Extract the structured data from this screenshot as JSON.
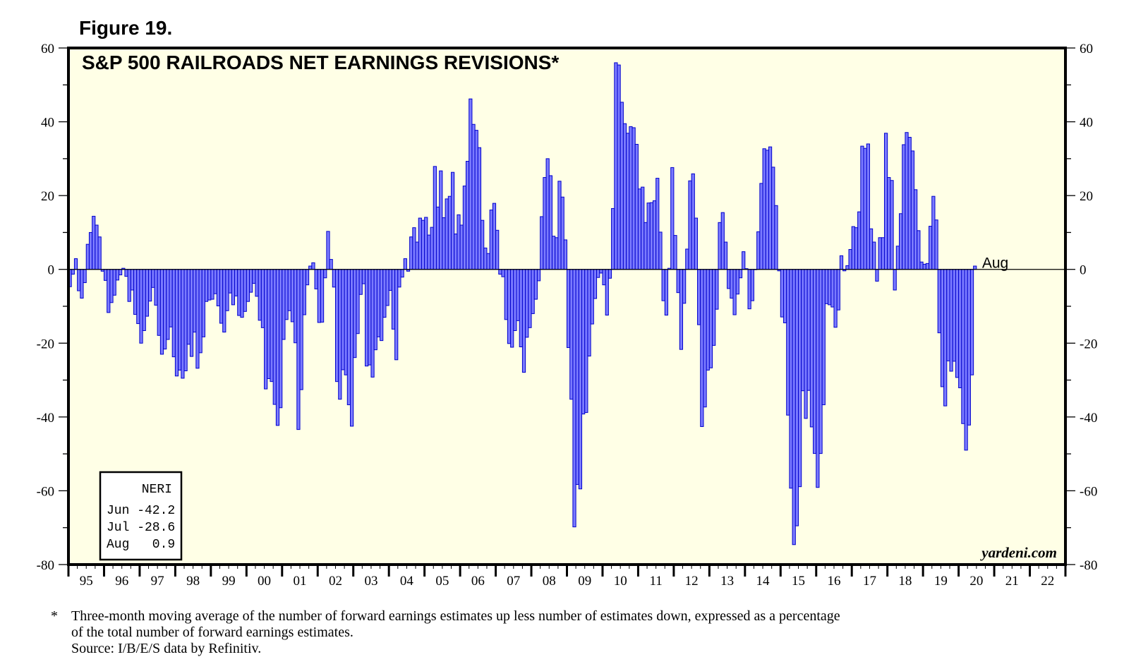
{
  "figure_label": "Figure 19.",
  "watermark": "yardeni.com",
  "latest_label": "Aug",
  "colors": {
    "plot_bg": "#ffffe6",
    "bar_fill": "#7b7bff",
    "bar_stroke": "#0000cc",
    "frame": "#000000"
  },
  "inset": {
    "header": "NERI",
    "rows": [
      "Jun -42.2",
      "Jul -28.6",
      "Aug   0.9"
    ]
  },
  "footnote": {
    "star": "*",
    "line1": "Three-month moving average of the number of forward earnings estimates up less number of estimates down, expressed as a percentage",
    "line2": "of the total number of forward earnings estimates.",
    "line3": "Source: I/B/E/S data by Refinitiv."
  },
  "chart_data": {
    "type": "bar",
    "title": "S&P 500 RAILROADS NET EARNINGS REVISIONS*",
    "xlabel": "",
    "ylabel": "",
    "ylim": [
      -80,
      60
    ],
    "yticks": [
      60,
      40,
      20,
      0,
      -20,
      -40,
      -60,
      -80
    ],
    "ytick_labels": [
      "60",
      "40",
      "20",
      "0",
      "-20",
      "-40",
      "-60",
      "-80"
    ],
    "x_start": "1995-01",
    "x_end": "2022-12",
    "year_labels": [
      "95",
      "96",
      "97",
      "98",
      "99",
      "00",
      "01",
      "02",
      "03",
      "04",
      "05",
      "06",
      "07",
      "08",
      "09",
      "10",
      "11",
      "12",
      "13",
      "14",
      "15",
      "16",
      "17",
      "18",
      "19",
      "20",
      "21",
      "22"
    ],
    "series": [
      {
        "name": "NERI",
        "start": "1995-01",
        "values": [
          -4.7,
          -1.3,
          2.9,
          -5.8,
          -7.8,
          -3.6,
          6.8,
          10.0,
          14.4,
          12.0,
          8.8,
          -0.5,
          -3.0,
          -11.7,
          -9.0,
          -7.0,
          -2.9,
          -1.5,
          0.3,
          -1.9,
          -8.7,
          -5.6,
          -12.2,
          -14.7,
          -20.0,
          -16.6,
          -12.7,
          -8.6,
          -4.9,
          -9.7,
          -17.9,
          -23.0,
          -21.6,
          -19.0,
          -15.6,
          -23.7,
          -28.9,
          -27.3,
          -29.5,
          -27.5,
          -20.3,
          -23.6,
          -17.0,
          -26.8,
          -22.6,
          -18.3,
          -8.7,
          -8.3,
          -8.1,
          -6.6,
          -9.9,
          -14.6,
          -17.0,
          -11.2,
          -6.4,
          -9.6,
          -7.2,
          -12.5,
          -13.0,
          -11.4,
          -8.7,
          -6.2,
          -3.8,
          -7.3,
          -13.8,
          -15.8,
          -32.4,
          -29.6,
          -30.4,
          -36.6,
          -42.3,
          -37.5,
          -19.0,
          -13.6,
          -11.2,
          -14.2,
          -19.9,
          -43.4,
          -32.6,
          -12.3,
          -4.2,
          0.9,
          1.8,
          -5.3,
          -14.4,
          -14.3,
          -2.3,
          10.3,
          2.7,
          -4.8,
          -30.4,
          -35.2,
          -27.2,
          -28.6,
          -36.7,
          -42.5,
          -23.9,
          -17.4,
          -6.8,
          -3.9,
          -26.2,
          -25.9,
          -29.2,
          -21.8,
          -18.3,
          -19.3,
          -13.0,
          -9.8,
          -5.7,
          -16.2,
          -24.5,
          -4.8,
          -2.1,
          2.9,
          -0.5,
          8.8,
          11.3,
          7.4,
          13.9,
          13.3,
          14.1,
          9.3,
          11.4,
          27.9,
          16.9,
          26.7,
          14.0,
          19.1,
          19.8,
          26.3,
          9.6,
          14.8,
          12.0,
          22.6,
          29.3,
          46.2,
          39.3,
          37.7,
          33.0,
          13.3,
          5.8,
          4.3,
          16.1,
          17.9,
          10.6,
          -1.3,
          -2.0,
          -13.6,
          -20.1,
          -21.1,
          -16.6,
          -13.9,
          -21.0,
          -27.9,
          -18.4,
          -15.8,
          -12.0,
          -8.1,
          -3.1,
          14.3,
          24.9,
          30.0,
          25.4,
          9.0,
          8.6,
          23.9,
          19.6,
          8.0,
          -21.2,
          -35.2,
          -69.8,
          -58.3,
          -59.5,
          -39.2,
          -38.8,
          -23.5,
          -14.8,
          -7.9,
          -2.2,
          -1.0,
          -4.2,
          -12.4,
          -2.4,
          16.5,
          56.0,
          55.4,
          45.3,
          39.5,
          36.9,
          38.7,
          38.4,
          33.9,
          21.8,
          22.3,
          12.7,
          18.0,
          18.1,
          18.6,
          24.7,
          10.1,
          -8.5,
          -12.4,
          0.3,
          27.6,
          9.2,
          -6.3,
          -21.7,
          -9.2,
          5.5,
          24.0,
          25.9,
          13.9,
          -15.0,
          -42.6,
          -37.3,
          -27.3,
          -26.7,
          -20.6,
          -10.8,
          12.7,
          15.4,
          7.4,
          -5.2,
          -7.8,
          -12.3,
          -6.7,
          -2.3,
          4.8,
          0.2,
          -10.7,
          -8.5,
          0.0,
          10.2,
          23.3,
          32.7,
          32.3,
          33.2,
          27.7,
          17.3,
          -0.4,
          -12.9,
          -14.5,
          -39.5,
          -59.3,
          -74.6,
          -69.5,
          -58.9,
          -32.9,
          -40.4,
          -32.8,
          -42.7,
          -49.9,
          -59.1,
          -49.9,
          -36.7,
          -9.3,
          -9.6,
          -10.2,
          -15.7,
          -11.0,
          3.7,
          -0.4,
          1.0,
          5.4,
          11.6,
          11.3,
          15.6,
          33.4,
          32.8,
          34.0,
          11.0,
          7.4,
          -3.2,
          8.6,
          8.6,
          36.9,
          24.9,
          24.1,
          -5.6,
          6.3,
          15.1,
          33.8,
          37.1,
          35.8,
          32.1,
          21.6,
          10.5,
          2.0,
          1.4,
          1.6,
          11.7,
          19.8,
          13.4,
          -17.2,
          -31.8,
          -37.0,
          -24.8,
          -27.6,
          -24.9,
          -29.3,
          -32.1,
          -41.8,
          -49.0,
          -42.2,
          -28.6,
          0.9
        ]
      }
    ]
  }
}
